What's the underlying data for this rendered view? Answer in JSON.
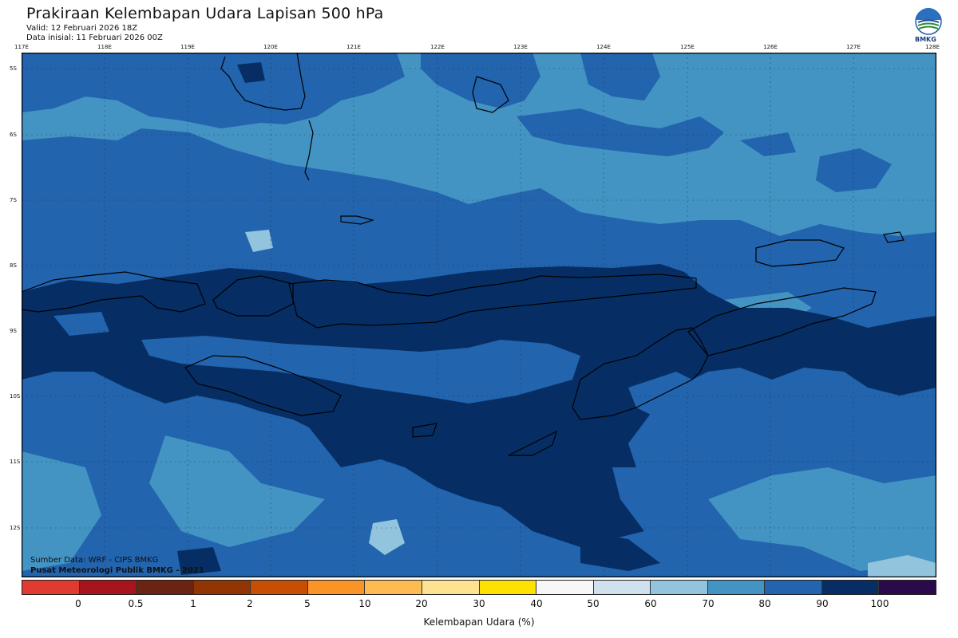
{
  "header": {
    "title": "Prakiraan Kelembapan Udara Lapisan 500 hPa",
    "valid": "Valid: 12 Februari 2026 18Z",
    "initial": "Data inisial: 11 Februari 2026 00Z",
    "logo_text": "BMKG"
  },
  "map": {
    "lon_labels": [
      "117E",
      "118E",
      "119E",
      "120E",
      "121E",
      "122E",
      "123E",
      "124E",
      "125E",
      "126E",
      "127E",
      "128E"
    ],
    "lat_labels": [
      "5S",
      "6S",
      "7S",
      "8S",
      "9S",
      "10S",
      "11S",
      "12S"
    ],
    "source": "Sumber Data: WRF - CIPS BMKG",
    "publisher": "Pusat Meteorologi Publik BMKG - 2021"
  },
  "colorbar": {
    "colors": [
      "#e03a31",
      "#a8141b",
      "#6b2411",
      "#923505",
      "#c84e05",
      "#fb9427",
      "#fdbc52",
      "#fde391",
      "#fde200",
      "#f7f7f7",
      "#cfe1ed",
      "#92c4de",
      "#4393c3",
      "#2264ae",
      "#062e64",
      "#2a0a4a"
    ],
    "ticks": [
      "0",
      "0.5",
      "1",
      "2",
      "5",
      "10",
      "20",
      "30",
      "40",
      "50",
      "60",
      "70",
      "80",
      "90",
      "100"
    ],
    "title": "Kelembapan Udara (%)"
  }
}
